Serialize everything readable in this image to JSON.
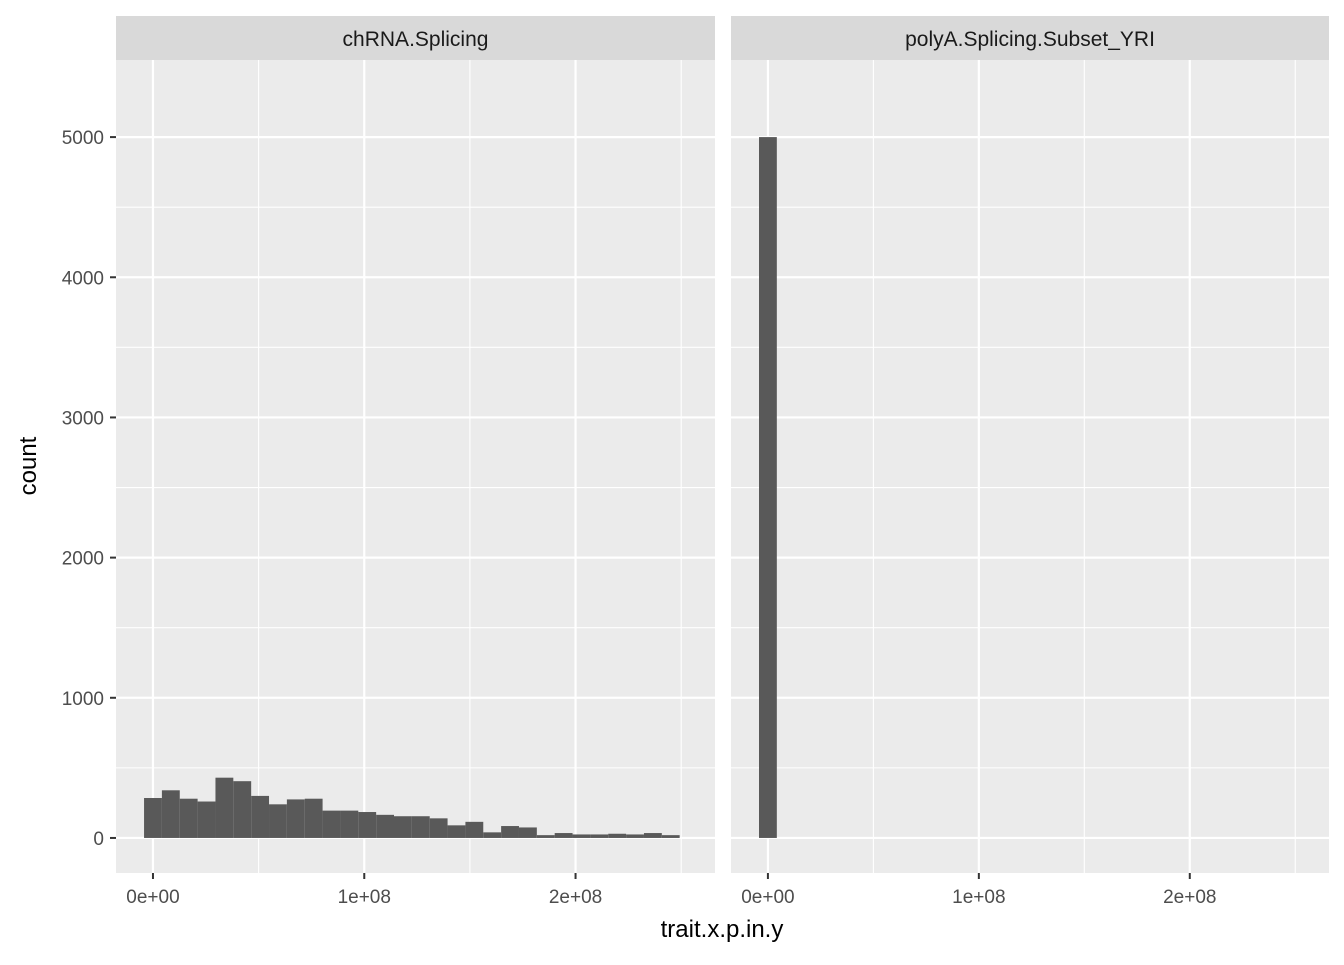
{
  "chart_data": {
    "type": "bar",
    "facet_layout": "two panels side by side with shared y axis",
    "xlabel": "trait.x.p.in.y",
    "ylabel": "count",
    "ylim": [
      -250,
      5550
    ],
    "xlim": [
      -17500000,
      266000000
    ],
    "x_ticks": [
      0,
      100000000,
      200000000
    ],
    "x_tick_labels": [
      "0e+00",
      "1e+08",
      "2e+08"
    ],
    "y_ticks": [
      0,
      1000,
      2000,
      3000,
      4000,
      5000
    ],
    "y_tick_labels": [
      "0",
      "1000",
      "2000",
      "3000",
      "4000",
      "5000"
    ],
    "grid": true,
    "colors": {
      "bar": "#595959",
      "panel_bg": "#ebebeb",
      "grid": "#ffffff",
      "strip_bg": "#d9d9d9",
      "text": "#4d4d4d",
      "title_text": "#000000"
    },
    "panels": [
      {
        "title": "chRNA.Splicing",
        "bin_width": 8450000,
        "bin_starts": [
          -4225000,
          4225000,
          12675000,
          21125000,
          29575000,
          38025000,
          46475000,
          54925000,
          63375000,
          71825000,
          80275000,
          88725000,
          97175000,
          105625000,
          114075000,
          122525000,
          130975000,
          139425000,
          147875000,
          156325000,
          164775000,
          173225000,
          181675000,
          190125000,
          198575000,
          207025000,
          215475000,
          223925000,
          232375000,
          240825000
        ],
        "values": [
          285,
          340,
          280,
          260,
          430,
          405,
          300,
          240,
          275,
          280,
          195,
          195,
          185,
          165,
          155,
          155,
          140,
          90,
          115,
          40,
          85,
          75,
          20,
          35,
          25,
          25,
          30,
          25,
          35,
          20
        ]
      },
      {
        "title": "polyA.Splicing.Subset_YRI",
        "bin_width": 8450000,
        "bin_starts": [
          -4225000
        ],
        "values": [
          5000
        ]
      }
    ]
  }
}
